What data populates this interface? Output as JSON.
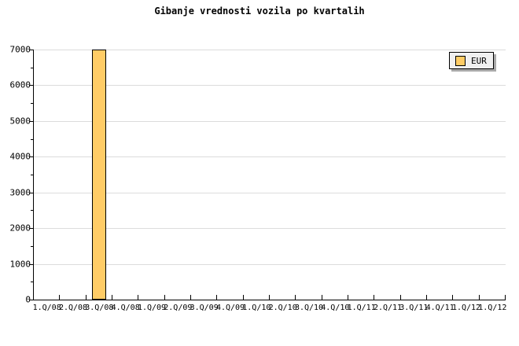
{
  "title": "Gibanje vrednosti vozila po kvartalih",
  "legend": {
    "label": "EUR",
    "swatch_color": "#ffcc66"
  },
  "colors": {
    "background": "#ffffff",
    "bar_fill": "#ffcc66",
    "bar_border": "#000000",
    "gridline": "#dcdcdc",
    "axis": "#000000",
    "legend_bg": "#f0f0f0",
    "legend_shadow": "#a9a9a9",
    "text": "#000000"
  },
  "chart_data": {
    "type": "bar",
    "title": "Gibanje vrednosti vozila po kvartalih",
    "categories": [
      "1.Q/08",
      "2.Q/08",
      "3.Q/08",
      "4.Q/08",
      "1.Q/09",
      "2.Q/09",
      "3.Q/09",
      "4.Q/09",
      "1.Q/10",
      "2.Q/10",
      "3.Q/10",
      "4.Q/10",
      "1.Q/11",
      "2.Q/11",
      "3.Q/11",
      "4.Q/11",
      "1.Q/12",
      "1.Q/12"
    ],
    "series": [
      {
        "name": "EUR",
        "values": [
          0,
          0,
          7000,
          0,
          0,
          0,
          0,
          0,
          0,
          0,
          0,
          0,
          0,
          0,
          0,
          0,
          0,
          0
        ]
      }
    ],
    "xlabel": "",
    "ylabel": "",
    "ylim": [
      0,
      7000
    ],
    "ytick_labels": [
      "0",
      "1000",
      "2000",
      "3000",
      "4000",
      "5000",
      "6000",
      "7000"
    ],
    "ytick_step": 1000,
    "yminor_tick_step": 500,
    "grid": "horizontal-major",
    "legend_position": "top-right"
  }
}
